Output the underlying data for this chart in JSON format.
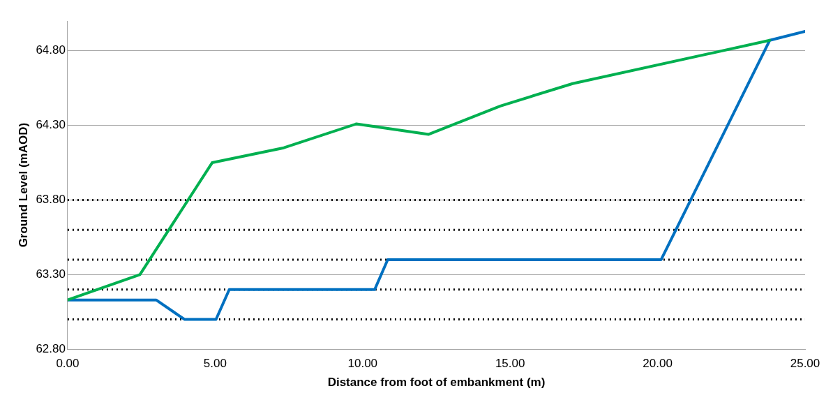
{
  "chart_data": {
    "type": "line",
    "xlabel": "Distance from foot of embankment (m)",
    "ylabel": "Ground Level (mAOD)",
    "xlim": [
      0,
      25
    ],
    "xticks": [
      {
        "value": 0,
        "label": "0.00"
      },
      {
        "value": 5,
        "label": "5.00"
      },
      {
        "value": 10,
        "label": "10.00"
      },
      {
        "value": 15,
        "label": "15.00"
      },
      {
        "value": 20,
        "label": "20.00"
      },
      {
        "value": 25,
        "label": "25.00"
      }
    ],
    "ylim": [
      62.8,
      65.0
    ],
    "yticks": [
      {
        "value": 62.8,
        "label": "62.80"
      },
      {
        "value": 63.3,
        "label": "63.30"
      },
      {
        "value": 63.8,
        "label": "63.80"
      },
      {
        "value": 64.3,
        "label": "64.30"
      },
      {
        "value": 64.8,
        "label": "64.80"
      }
    ],
    "grid": "y",
    "legend": false,
    "marker": "none",
    "series": [
      {
        "color": "#00b050",
        "x": [
          0,
          2.45,
          4.9,
          7.33,
          9.79,
          12.24,
          14.67,
          17.12,
          23.8
        ],
        "values": [
          63.13,
          63.3,
          64.05,
          64.15,
          64.31,
          64.24,
          64.43,
          64.58,
          64.87
        ]
      },
      {
        "color": "#0070c0",
        "x": [
          0,
          3.0,
          3.96,
          5.03,
          5.48,
          10.41,
          10.85,
          20.12,
          23.8,
          25
        ],
        "values": [
          63.13,
          63.13,
          63.0,
          63.0,
          63.2,
          63.2,
          63.4,
          63.4,
          64.87,
          64.93
        ]
      }
    ],
    "ref_lines": [
      {
        "axis": "y",
        "value": 63.8,
        "color": "#000000",
        "line_style": "dotted"
      },
      {
        "axis": "y",
        "value": 63.6,
        "color": "#000000",
        "line_style": "dotted"
      },
      {
        "axis": "y",
        "value": 63.4,
        "color": "#000000",
        "line_style": "dotted"
      },
      {
        "axis": "y",
        "value": 63.2,
        "color": "#000000",
        "line_style": "dotted"
      },
      {
        "axis": "y",
        "value": 63.0,
        "color": "#000000",
        "line_style": "dotted"
      }
    ]
  }
}
